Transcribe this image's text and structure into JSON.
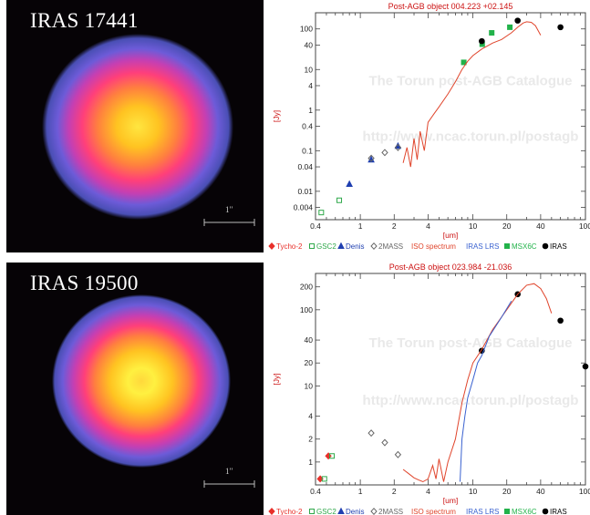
{
  "images": [
    {
      "label": "IRAS 17441",
      "scale_label": "1′′"
    },
    {
      "label": "IRAS 19500",
      "scale_label": "1′′"
    }
  ],
  "watermark": {
    "line1": "The Torun post-AGB Catalogue",
    "line2": "http://www.ncac.torun.pl/postagb"
  },
  "colors": {
    "tycho": "#e8302a",
    "gsc2": "#2fa84a",
    "denis": "#1f3fb0",
    "twomass": "#666666",
    "iso": "#e0452c",
    "iraslrs": "#3a62d0",
    "msx": "#22b24a",
    "iras": "#000000",
    "title": "#cc1111",
    "axis_label": "#cc1111"
  },
  "legend": [
    {
      "key": "tycho",
      "marker": "diamond",
      "fill": true,
      "label": "Tycho-2"
    },
    {
      "key": "gsc2",
      "marker": "square",
      "fill": false,
      "label": "GSC2"
    },
    {
      "key": "denis",
      "marker": "triangle",
      "fill": true,
      "label": "Denis"
    },
    {
      "key": "twomass",
      "marker": "diamond",
      "fill": false,
      "label": "2MASS"
    },
    {
      "key": "iso",
      "marker": "none",
      "fill": false,
      "label": "ISO spectrum"
    },
    {
      "key": "iraslrs",
      "marker": "none",
      "fill": false,
      "label": "IRAS LRS"
    },
    {
      "key": "msx",
      "marker": "square",
      "fill": true,
      "label": "MSX6C"
    },
    {
      "key": "iras",
      "marker": "circle",
      "fill": true,
      "label": "IRAS"
    }
  ],
  "chart_data": [
    {
      "type": "scatter",
      "title": "Post-AGB object 004.223 +02.145",
      "xlabel": "[um]",
      "ylabel": "[Jy]",
      "xscale": "log",
      "yscale": "log",
      "xlim": [
        0.4,
        100
      ],
      "ylim": [
        0.002,
        250
      ],
      "xticks": [
        0.4,
        1,
        2,
        4,
        10,
        20,
        40,
        100
      ],
      "yticks": [
        0.004,
        0.01,
        0.04,
        0.1,
        0.4,
        1,
        4,
        10,
        40,
        100
      ],
      "series": [
        {
          "key": "gsc2",
          "points": [
            [
              0.45,
              0.003
            ],
            [
              0.65,
              0.006
            ]
          ]
        },
        {
          "key": "denis",
          "points": [
            [
              0.8,
              0.015
            ],
            [
              1.25,
              0.06
            ],
            [
              2.16,
              0.13
            ]
          ]
        },
        {
          "key": "twomass",
          "points": [
            [
              1.25,
              0.065
            ],
            [
              1.65,
              0.09
            ],
            [
              2.16,
              0.12
            ]
          ]
        },
        {
          "key": "msx",
          "points": [
            [
              8.3,
              15
            ],
            [
              12.1,
              42
            ],
            [
              14.7,
              80
            ],
            [
              21.3,
              110
            ]
          ]
        },
        {
          "key": "iras",
          "points": [
            [
              12,
              50
            ],
            [
              25,
              160
            ],
            [
              60,
              110
            ]
          ]
        },
        {
          "key": "iso",
          "line": true,
          "points": [
            [
              2.4,
              0.05
            ],
            [
              2.6,
              0.12
            ],
            [
              2.8,
              0.04
            ],
            [
              3.0,
              0.2
            ],
            [
              3.2,
              0.06
            ],
            [
              3.4,
              0.3
            ],
            [
              3.7,
              0.1
            ],
            [
              4.0,
              0.5
            ],
            [
              4.5,
              0.8
            ],
            [
              5,
              1.2
            ],
            [
              6,
              2.5
            ],
            [
              7,
              5
            ],
            [
              8,
              10
            ],
            [
              9,
              16
            ],
            [
              10,
              22
            ],
            [
              12,
              32
            ],
            [
              15,
              45
            ],
            [
              18,
              55
            ],
            [
              22,
              80
            ],
            [
              25,
              110
            ],
            [
              28,
              140
            ],
            [
              30,
              150
            ],
            [
              33,
              145
            ],
            [
              36,
              120
            ],
            [
              40,
              70
            ]
          ]
        }
      ]
    },
    {
      "type": "scatter",
      "title": "Post-AGB object 023.984 -21.036",
      "xlabel": "[um]",
      "ylabel": "[Jy]",
      "xscale": "log",
      "yscale": "log",
      "xlim": [
        0.4,
        100
      ],
      "ylim": [
        0.5,
        300
      ],
      "xticks": [
        0.4,
        1,
        2,
        4,
        10,
        20,
        40,
        100
      ],
      "yticks": [
        1,
        2,
        4,
        10,
        20,
        40,
        100,
        200
      ],
      "series": [
        {
          "key": "tycho",
          "points": [
            [
              0.44,
              0.6
            ],
            [
              0.52,
              1.2
            ]
          ]
        },
        {
          "key": "gsc2",
          "points": [
            [
              0.48,
              0.6
            ],
            [
              0.56,
              1.2
            ]
          ]
        },
        {
          "key": "twomass",
          "points": [
            [
              1.25,
              2.4
            ],
            [
              1.65,
              1.8
            ],
            [
              2.16,
              1.25
            ]
          ]
        },
        {
          "key": "iras",
          "points": [
            [
              12,
              29
            ],
            [
              25,
              160
            ],
            [
              60,
              72
            ],
            [
              100,
              18
            ]
          ]
        },
        {
          "key": "iso",
          "line": true,
          "points": [
            [
              2.4,
              0.8
            ],
            [
              2.7,
              0.7
            ],
            [
              3,
              0.62
            ],
            [
              3.3,
              0.58
            ],
            [
              3.6,
              0.55
            ],
            [
              4.0,
              0.6
            ],
            [
              4.4,
              0.9
            ],
            [
              4.7,
              0.6
            ],
            [
              5.0,
              1.1
            ],
            [
              5.5,
              0.55
            ],
            [
              6,
              1.0
            ],
            [
              7,
              2
            ],
            [
              8,
              6
            ],
            [
              9,
              12
            ],
            [
              10,
              20
            ],
            [
              12,
              30
            ],
            [
              15,
              55
            ],
            [
              20,
              100
            ],
            [
              25,
              160
            ],
            [
              30,
              210
            ],
            [
              35,
              220
            ],
            [
              40,
              190
            ],
            [
              45,
              140
            ],
            [
              50,
              90
            ]
          ]
        },
        {
          "key": "iraslrs",
          "line": true,
          "points": [
            [
              7.7,
              0.55
            ],
            [
              8,
              2
            ],
            [
              8.5,
              4
            ],
            [
              9,
              7
            ],
            [
              10,
              12
            ],
            [
              11,
              20
            ],
            [
              12,
              25
            ],
            [
              14,
              45
            ],
            [
              18,
              80
            ],
            [
              22,
              130
            ]
          ]
        }
      ]
    }
  ]
}
